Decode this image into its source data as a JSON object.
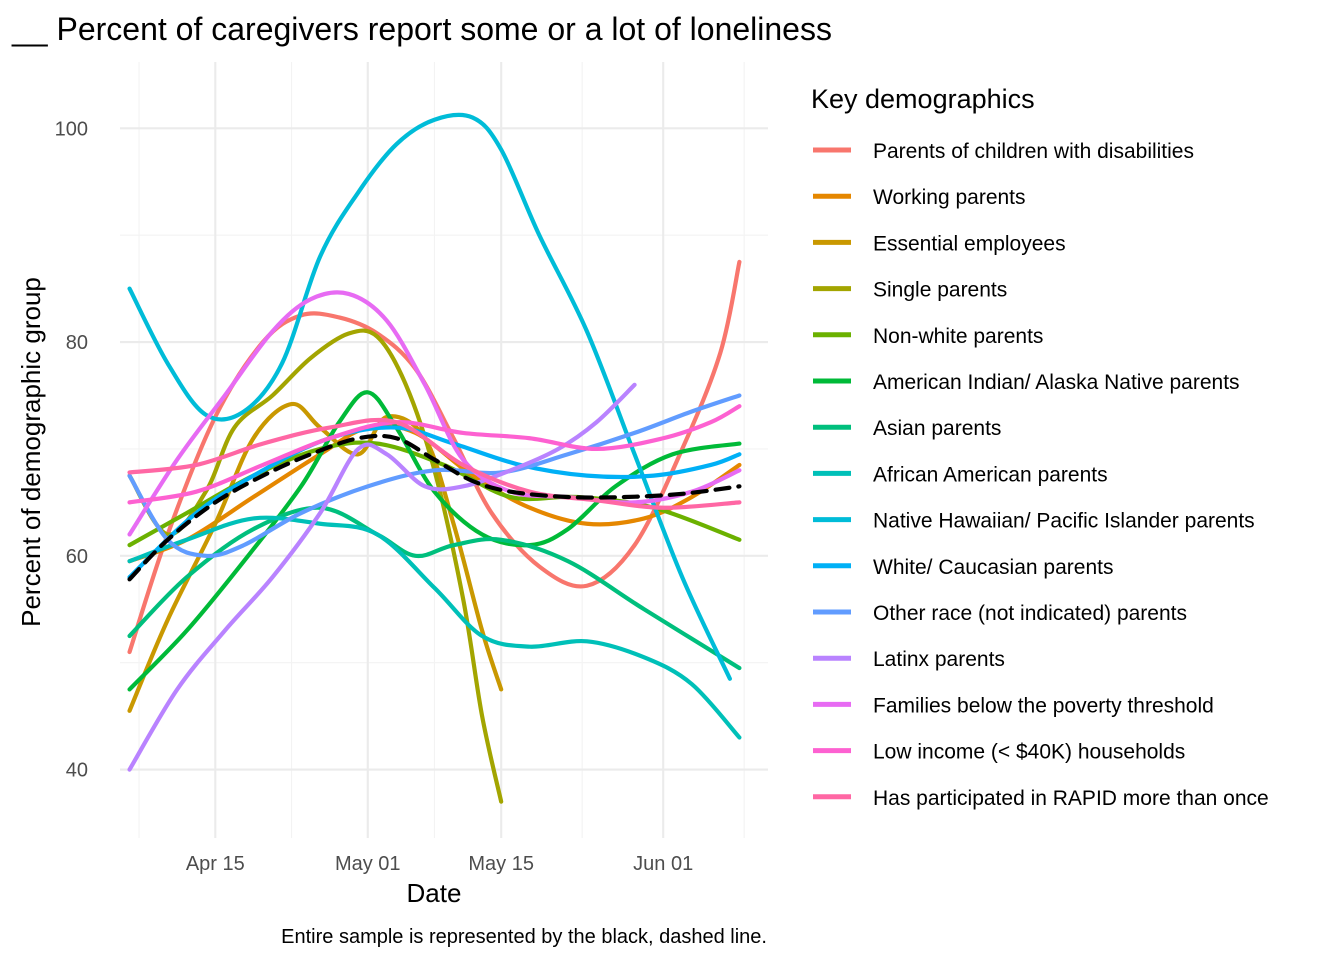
{
  "chart_data": {
    "type": "line",
    "title": "__ Percent of caregivers report some or a lot of loneliness",
    "xlabel": "Date",
    "ylabel": "Percent of demographic group",
    "caption": "Entire sample is represented by the black, dashed line.",
    "x_axis": {
      "type": "date",
      "range": [
        "2020-04-05",
        "2020-06-12"
      ],
      "ticks": [
        {
          "date": "2020-04-15",
          "label": "Apr 15"
        },
        {
          "date": "2020-05-01",
          "label": "May 01"
        },
        {
          "date": "2020-05-15",
          "label": "May 15"
        },
        {
          "date": "2020-06-01",
          "label": "Jun 01"
        }
      ]
    },
    "y_axis": {
      "range": [
        33.6,
        106.2
      ],
      "ticks": [
        40,
        60,
        80,
        100
      ],
      "minor_ticks": [
        50,
        70,
        90
      ]
    },
    "grid": true,
    "legend": {
      "title": "Key demographics",
      "position": "right"
    },
    "series": [
      {
        "name": "Parents of children with disabilities",
        "color": "#F8766D",
        "points": [
          [
            "2020-04-06",
            51
          ],
          [
            "2020-04-10",
            62
          ],
          [
            "2020-04-15",
            73
          ],
          [
            "2020-04-20",
            80
          ],
          [
            "2020-04-24",
            82.5
          ],
          [
            "2020-04-28",
            82.3
          ],
          [
            "2020-05-02",
            80.8
          ],
          [
            "2020-05-06",
            77.5
          ],
          [
            "2020-05-10",
            71
          ],
          [
            "2020-05-14",
            64
          ],
          [
            "2020-05-19",
            59
          ],
          [
            "2020-05-24",
            57.2
          ],
          [
            "2020-05-29",
            61
          ],
          [
            "2020-06-03",
            70
          ],
          [
            "2020-06-07",
            79
          ],
          [
            "2020-06-09",
            87.5
          ]
        ]
      },
      {
        "name": "Working parents",
        "color": "#E58700",
        "points": [
          [
            "2020-04-06",
            59.5
          ],
          [
            "2020-04-12",
            61.5
          ],
          [
            "2020-04-19",
            65.5
          ],
          [
            "2020-04-26",
            69.5
          ],
          [
            "2020-05-01",
            72
          ],
          [
            "2020-05-06",
            71.5
          ],
          [
            "2020-05-12",
            67.5
          ],
          [
            "2020-05-18",
            64.5
          ],
          [
            "2020-05-24",
            63
          ],
          [
            "2020-05-30",
            63.5
          ],
          [
            "2020-06-04",
            65.5
          ],
          [
            "2020-06-09",
            68.5
          ]
        ]
      },
      {
        "name": "Essential employees",
        "color": "#C99800",
        "points": [
          [
            "2020-04-06",
            45.5
          ],
          [
            "2020-04-10",
            54
          ],
          [
            "2020-04-15",
            63
          ],
          [
            "2020-04-19",
            71
          ],
          [
            "2020-04-23",
            74.2
          ],
          [
            "2020-04-26",
            72
          ],
          [
            "2020-04-30",
            69.5
          ],
          [
            "2020-05-03",
            73
          ],
          [
            "2020-05-07",
            71
          ],
          [
            "2020-05-10",
            63
          ],
          [
            "2020-05-13",
            53
          ],
          [
            "2020-05-15",
            47.5
          ]
        ]
      },
      {
        "name": "Single parents",
        "color": "#A3A500",
        "points": [
          [
            "2020-04-06",
            67.5
          ],
          [
            "2020-04-10",
            62
          ],
          [
            "2020-04-14",
            66
          ],
          [
            "2020-04-17",
            72
          ],
          [
            "2020-04-21",
            75
          ],
          [
            "2020-04-25",
            78.5
          ],
          [
            "2020-04-29",
            80.8
          ],
          [
            "2020-05-02",
            80.5
          ],
          [
            "2020-05-05",
            76
          ],
          [
            "2020-05-08",
            68
          ],
          [
            "2020-05-11",
            56
          ],
          [
            "2020-05-13",
            45
          ],
          [
            "2020-05-15",
            37
          ]
        ]
      },
      {
        "name": "Non-white parents",
        "color": "#6BB100",
        "points": [
          [
            "2020-04-06",
            61
          ],
          [
            "2020-04-12",
            64
          ],
          [
            "2020-04-19",
            67.5
          ],
          [
            "2020-04-26",
            70
          ],
          [
            "2020-05-02",
            70.5
          ],
          [
            "2020-05-09",
            68.5
          ],
          [
            "2020-05-16",
            65.5
          ],
          [
            "2020-05-23",
            65.5
          ],
          [
            "2020-05-31",
            64.5
          ],
          [
            "2020-06-09",
            61.5
          ]
        ]
      },
      {
        "name": "American Indian/ Alaska Native parents",
        "color": "#00BA38",
        "points": [
          [
            "2020-04-06",
            47.5
          ],
          [
            "2020-04-12",
            53
          ],
          [
            "2020-04-18",
            59.5
          ],
          [
            "2020-04-24",
            66.5
          ],
          [
            "2020-04-28",
            72.5
          ],
          [
            "2020-05-01",
            75.3
          ],
          [
            "2020-05-04",
            72
          ],
          [
            "2020-05-08",
            66
          ],
          [
            "2020-05-13",
            62
          ],
          [
            "2020-05-18",
            61
          ],
          [
            "2020-05-22",
            62.5
          ],
          [
            "2020-05-27",
            66.5
          ],
          [
            "2020-06-02",
            69.5
          ],
          [
            "2020-06-09",
            70.5
          ]
        ]
      },
      {
        "name": "Asian parents",
        "color": "#00BF7D",
        "points": [
          [
            "2020-04-06",
            52.5
          ],
          [
            "2020-04-12",
            58
          ],
          [
            "2020-04-19",
            62.5
          ],
          [
            "2020-04-26",
            64.5
          ],
          [
            "2020-05-02",
            62
          ],
          [
            "2020-05-06",
            60
          ],
          [
            "2020-05-10",
            61
          ],
          [
            "2020-05-15",
            61.5
          ],
          [
            "2020-05-22",
            59.5
          ],
          [
            "2020-05-30",
            55
          ],
          [
            "2020-06-09",
            49.5
          ]
        ]
      },
      {
        "name": "African American parents",
        "color": "#00C0B8",
        "points": [
          [
            "2020-04-06",
            59.5
          ],
          [
            "2020-04-12",
            61.5
          ],
          [
            "2020-04-19",
            63.5
          ],
          [
            "2020-04-26",
            63
          ],
          [
            "2020-05-02",
            62
          ],
          [
            "2020-05-08",
            57
          ],
          [
            "2020-05-13",
            52.5
          ],
          [
            "2020-05-18",
            51.5
          ],
          [
            "2020-05-24",
            52
          ],
          [
            "2020-05-30",
            50.5
          ],
          [
            "2020-06-04",
            48
          ],
          [
            "2020-06-09",
            43
          ]
        ]
      },
      {
        "name": "Native Hawaiian/ Pacific Islander parents",
        "color": "#00BCD8",
        "points": [
          [
            "2020-04-06",
            85
          ],
          [
            "2020-04-10",
            78
          ],
          [
            "2020-04-14",
            73.2
          ],
          [
            "2020-04-18",
            73.5
          ],
          [
            "2020-04-22",
            78
          ],
          [
            "2020-04-26",
            88
          ],
          [
            "2020-04-30",
            94
          ],
          [
            "2020-05-04",
            98.5
          ],
          [
            "2020-05-08",
            100.8
          ],
          [
            "2020-05-12",
            101
          ],
          [
            "2020-05-15",
            98
          ],
          [
            "2020-05-19",
            90
          ],
          [
            "2020-05-24",
            81
          ],
          [
            "2020-05-29",
            69.5
          ],
          [
            "2020-06-03",
            58
          ],
          [
            "2020-06-08",
            48.5
          ]
        ]
      },
      {
        "name": "White/ Caucasian parents",
        "color": "#00B0F6",
        "points": [
          [
            "2020-04-06",
            58
          ],
          [
            "2020-04-13",
            64
          ],
          [
            "2020-04-20",
            68
          ],
          [
            "2020-04-27",
            71
          ],
          [
            "2020-05-04",
            72
          ],
          [
            "2020-05-10",
            70.5
          ],
          [
            "2020-05-17",
            68.5
          ],
          [
            "2020-05-24",
            67.5
          ],
          [
            "2020-05-31",
            67.5
          ],
          [
            "2020-06-06",
            68.5
          ],
          [
            "2020-06-09",
            69.5
          ]
        ]
      },
      {
        "name": "Other race (not indicated) parents",
        "color": "#619CFF",
        "points": [
          [
            "2020-04-06",
            67.5
          ],
          [
            "2020-04-10",
            61.5
          ],
          [
            "2020-04-14",
            60
          ],
          [
            "2020-04-18",
            61
          ],
          [
            "2020-04-24",
            64
          ],
          [
            "2020-05-01",
            66.5
          ],
          [
            "2020-05-08",
            68
          ],
          [
            "2020-05-15",
            67.8
          ],
          [
            "2020-05-22",
            69.5
          ],
          [
            "2020-05-29",
            71.5
          ],
          [
            "2020-06-04",
            73.5
          ],
          [
            "2020-06-09",
            75
          ]
        ]
      },
      {
        "name": "Latinx parents",
        "color": "#B983FF",
        "points": [
          [
            "2020-04-06",
            40
          ],
          [
            "2020-04-11",
            47.5
          ],
          [
            "2020-04-16",
            53
          ],
          [
            "2020-04-21",
            58
          ],
          [
            "2020-04-26",
            64
          ],
          [
            "2020-04-30",
            70
          ],
          [
            "2020-05-03",
            69.5
          ],
          [
            "2020-05-07",
            66.5
          ],
          [
            "2020-05-11",
            66.5
          ],
          [
            "2020-05-16",
            68
          ],
          [
            "2020-05-21",
            70
          ],
          [
            "2020-05-25",
            72.5
          ],
          [
            "2020-05-29",
            76
          ]
        ]
      },
      {
        "name": "Families below the poverty threshold",
        "color": "#E76BF3",
        "points": [
          [
            "2020-04-06",
            62
          ],
          [
            "2020-04-11",
            69
          ],
          [
            "2020-04-16",
            75
          ],
          [
            "2020-04-21",
            81
          ],
          [
            "2020-04-25",
            84
          ],
          [
            "2020-04-29",
            84.5
          ],
          [
            "2020-05-03",
            82
          ],
          [
            "2020-05-07",
            76
          ],
          [
            "2020-05-11",
            69
          ],
          [
            "2020-05-16",
            66
          ],
          [
            "2020-05-22",
            65.5
          ],
          [
            "2020-05-29",
            65
          ],
          [
            "2020-06-04",
            66
          ],
          [
            "2020-06-09",
            68
          ]
        ]
      },
      {
        "name": "Low income (< $40K) households",
        "color": "#FD61D1",
        "points": [
          [
            "2020-04-06",
            65
          ],
          [
            "2020-04-13",
            66
          ],
          [
            "2020-04-20",
            68.5
          ],
          [
            "2020-04-27",
            71
          ],
          [
            "2020-05-04",
            72.5
          ],
          [
            "2020-05-11",
            71.5
          ],
          [
            "2020-05-18",
            71
          ],
          [
            "2020-05-25",
            70
          ],
          [
            "2020-06-01",
            71
          ],
          [
            "2020-06-06",
            72.5
          ],
          [
            "2020-06-09",
            74
          ]
        ]
      },
      {
        "name": "Has participated in RAPID more than once",
        "color": "#FF67A4",
        "points": [
          [
            "2020-04-06",
            67.8
          ],
          [
            "2020-04-13",
            68.5
          ],
          [
            "2020-04-20",
            70.5
          ],
          [
            "2020-04-27",
            72
          ],
          [
            "2020-05-04",
            72.5
          ],
          [
            "2020-05-11",
            68.5
          ],
          [
            "2020-05-18",
            66
          ],
          [
            "2020-05-25",
            65.2
          ],
          [
            "2020-06-01",
            64.5
          ],
          [
            "2020-06-09",
            65
          ]
        ]
      },
      {
        "name": "",
        "color": "#000000",
        "dashed": true,
        "points": [
          [
            "2020-04-06",
            57.8
          ],
          [
            "2020-04-10",
            61.5
          ],
          [
            "2020-04-15",
            65
          ],
          [
            "2020-04-20",
            67.5
          ],
          [
            "2020-04-25",
            69.5
          ],
          [
            "2020-04-30",
            71
          ],
          [
            "2020-05-04",
            71
          ],
          [
            "2020-05-08",
            69
          ],
          [
            "2020-05-12",
            67
          ],
          [
            "2020-05-16",
            66
          ],
          [
            "2020-05-22",
            65.5
          ],
          [
            "2020-05-28",
            65.5
          ],
          [
            "2020-06-03",
            65.8
          ],
          [
            "2020-06-09",
            66.5
          ]
        ]
      }
    ]
  }
}
